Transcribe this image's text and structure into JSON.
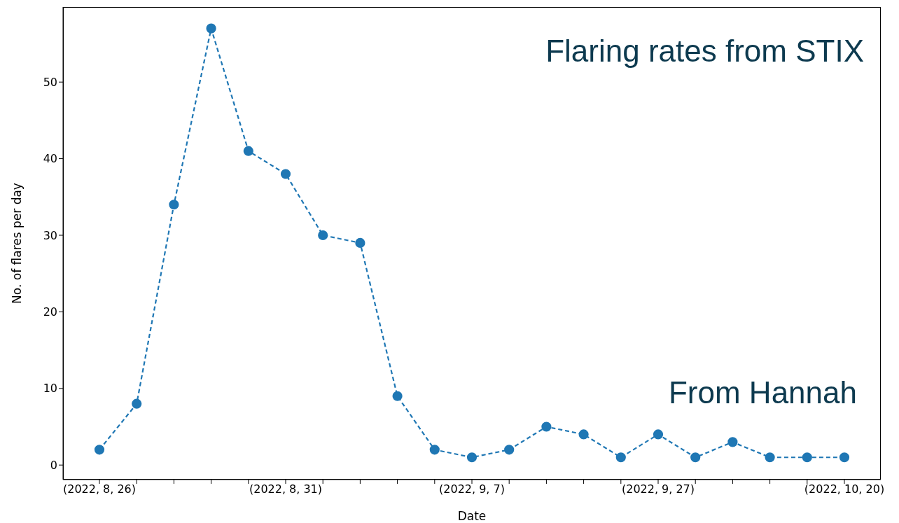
{
  "chart_data": {
    "type": "line",
    "xlabel": "Date",
    "ylabel": "No. of flares per day",
    "annotations": [
      "Flaring rates from STIX",
      "From Hannah"
    ],
    "categories": [
      "(2022, 8, 26)",
      null,
      null,
      null,
      null,
      "(2022, 8, 31)",
      null,
      null,
      null,
      null,
      "(2022, 9, 7)",
      null,
      null,
      null,
      null,
      "(2022, 9, 27)",
      null,
      null,
      null,
      null,
      "(2022, 10, 20)"
    ],
    "series": [
      {
        "color": "#1f77b4",
        "values": [
          2,
          8,
          34,
          57,
          41,
          38,
          30,
          29,
          9,
          2,
          1,
          2,
          5,
          4,
          1,
          4,
          1,
          3,
          1,
          1,
          1
        ]
      }
    ],
    "ylim": [
      -1.9,
      59.8
    ],
    "yticks": [
      0,
      10,
      20,
      30,
      40,
      50
    ],
    "marker": "circle",
    "line_style": "dashed"
  }
}
